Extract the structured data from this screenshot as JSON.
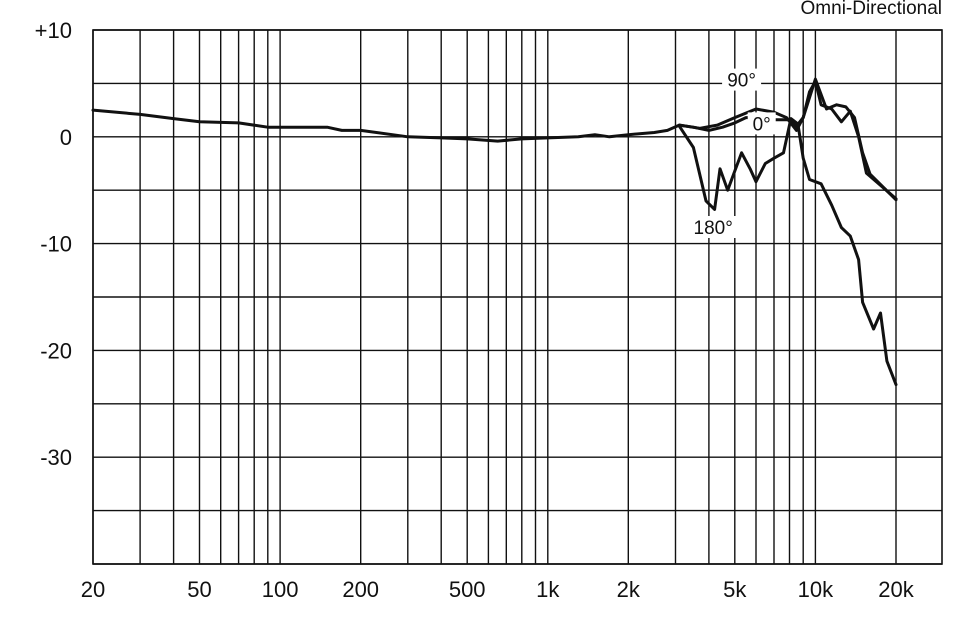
{
  "chart_data": {
    "type": "line",
    "subtitle": "Omni-Directional",
    "x_scale": "log",
    "xlim": [
      20,
      20000
    ],
    "ylim": [
      -40,
      10
    ],
    "y_ticks": [
      {
        "value": 10,
        "label": "+10"
      },
      {
        "value": 0,
        "label": "0"
      },
      {
        "value": -10,
        "label": "-10"
      },
      {
        "value": -20,
        "label": "-20"
      },
      {
        "value": -30,
        "label": "-30"
      }
    ],
    "x_ticks": [
      {
        "value": 20,
        "label": "20"
      },
      {
        "value": 50,
        "label": "50"
      },
      {
        "value": 100,
        "label": "100"
      },
      {
        "value": 200,
        "label": "200"
      },
      {
        "value": 500,
        "label": "500"
      },
      {
        "value": 1000,
        "label": "1k"
      },
      {
        "value": 2000,
        "label": "2k"
      },
      {
        "value": 5000,
        "label": "5k"
      },
      {
        "value": 10000,
        "label": "10k"
      },
      {
        "value": 20000,
        "label": "20k"
      }
    ],
    "x_gridlines": [
      20,
      30,
      40,
      50,
      60,
      70,
      80,
      90,
      100,
      200,
      300,
      400,
      500,
      600,
      700,
      800,
      900,
      1000,
      2000,
      3000,
      4000,
      5000,
      6000,
      7000,
      8000,
      9000,
      10000,
      20000
    ],
    "y_gridlines": [
      10,
      5,
      0,
      -5,
      -10,
      -15,
      -20,
      -25,
      -30,
      -35,
      -40
    ],
    "grid": true,
    "series": [
      {
        "name": "0°",
        "label_at": [
          6300,
          0.6
        ],
        "points": [
          [
            20,
            2.5
          ],
          [
            30,
            2.1
          ],
          [
            40,
            1.7
          ],
          [
            50,
            1.4
          ],
          [
            70,
            1.3
          ],
          [
            90,
            0.9
          ],
          [
            150,
            0.9
          ],
          [
            170,
            0.6
          ],
          [
            200,
            0.6
          ],
          [
            300,
            0.0
          ],
          [
            400,
            -0.1
          ],
          [
            500,
            -0.2
          ],
          [
            650,
            -0.4
          ],
          [
            800,
            -0.2
          ],
          [
            1000,
            -0.1
          ],
          [
            1300,
            0.0
          ],
          [
            1500,
            0.2
          ],
          [
            1700,
            0.0
          ],
          [
            2000,
            0.2
          ],
          [
            2500,
            0.4
          ],
          [
            2800,
            0.6
          ],
          [
            3100,
            1.1
          ],
          [
            3500,
            0.9
          ],
          [
            4000,
            0.6
          ],
          [
            4500,
            0.9
          ],
          [
            5000,
            1.3
          ],
          [
            5500,
            1.8
          ],
          [
            6000,
            1.8
          ],
          [
            7000,
            1.6
          ],
          [
            8000,
            1.6
          ],
          [
            8500,
            1.0
          ],
          [
            9000,
            1.8
          ],
          [
            9500,
            4.2
          ],
          [
            10000,
            5.2
          ],
          [
            10500,
            3.0
          ],
          [
            11500,
            2.6
          ],
          [
            12500,
            1.4
          ],
          [
            13500,
            2.4
          ],
          [
            14500,
            0.0
          ],
          [
            15500,
            -3.4
          ],
          [
            20000,
            -5.8
          ]
        ]
      },
      {
        "name": "90°",
        "label_at": [
          5300,
          4.7
        ],
        "points": [
          [
            3100,
            1.1
          ],
          [
            3700,
            0.8
          ],
          [
            4300,
            1.1
          ],
          [
            5000,
            1.8
          ],
          [
            6000,
            2.6
          ],
          [
            7000,
            2.3
          ],
          [
            7800,
            1.8
          ],
          [
            8500,
            0.6
          ],
          [
            9000,
            1.8
          ],
          [
            10000,
            5.4
          ],
          [
            11000,
            2.6
          ],
          [
            12000,
            3.0
          ],
          [
            13000,
            2.8
          ],
          [
            14000,
            1.8
          ],
          [
            15000,
            -1.5
          ],
          [
            16000,
            -3.5
          ],
          [
            20000,
            -5.9
          ]
        ]
      },
      {
        "name": "180°",
        "label_at": [
          4150,
          -9.1
        ],
        "points": [
          [
            3100,
            1.0
          ],
          [
            3500,
            -1.0
          ],
          [
            3900,
            -6.0
          ],
          [
            4200,
            -6.8
          ],
          [
            4400,
            -3.0
          ],
          [
            4700,
            -5.0
          ],
          [
            5000,
            -3.2
          ],
          [
            5300,
            -1.5
          ],
          [
            5700,
            -3.0
          ],
          [
            6000,
            -4.2
          ],
          [
            6500,
            -2.5
          ],
          [
            7000,
            -2.0
          ],
          [
            7600,
            -1.5
          ],
          [
            8100,
            1.7
          ],
          [
            8600,
            1.2
          ],
          [
            9000,
            -2.0
          ],
          [
            9500,
            -4.0
          ],
          [
            10500,
            -4.4
          ],
          [
            11500,
            -6.4
          ],
          [
            12500,
            -8.5
          ],
          [
            13500,
            -9.3
          ],
          [
            14500,
            -11.5
          ],
          [
            15000,
            -15.5
          ],
          [
            16500,
            -18.0
          ],
          [
            17500,
            -16.5
          ],
          [
            18500,
            -21.0
          ],
          [
            20000,
            -23.2
          ]
        ]
      }
    ]
  }
}
